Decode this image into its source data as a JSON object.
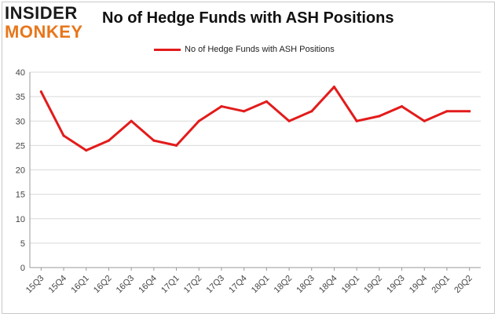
{
  "logo": {
    "line1": "INSIDER",
    "line2": "MONKEY"
  },
  "colors": {
    "line": "#e31b1b",
    "grid": "#d9d9d9",
    "axis": "#999999",
    "logo_orange": "#e8761b"
  },
  "chart_data": {
    "type": "line",
    "title": "No of Hedge Funds with ASH Positions",
    "xlabel": "",
    "ylabel": "",
    "legend_position": "top-center",
    "grid": true,
    "ylim": [
      0,
      40
    ],
    "yticks": [
      0,
      5,
      10,
      15,
      20,
      25,
      30,
      35,
      40
    ],
    "categories": [
      "15Q3",
      "15Q4",
      "16Q1",
      "16Q2",
      "16Q3",
      "16Q4",
      "17Q1",
      "17Q2",
      "17Q3",
      "17Q4",
      "18Q1",
      "18Q2",
      "18Q3",
      "18Q4",
      "19Q1",
      "19Q2",
      "19Q3",
      "19Q4",
      "20Q1",
      "20Q2"
    ],
    "series": [
      {
        "name": "No of Hedge Funds with ASH Positions",
        "values": [
          36,
          27,
          24,
          26,
          30,
          26,
          25,
          30,
          33,
          32,
          34,
          30,
          32,
          37,
          30,
          31,
          33,
          30,
          32,
          32
        ]
      }
    ]
  }
}
